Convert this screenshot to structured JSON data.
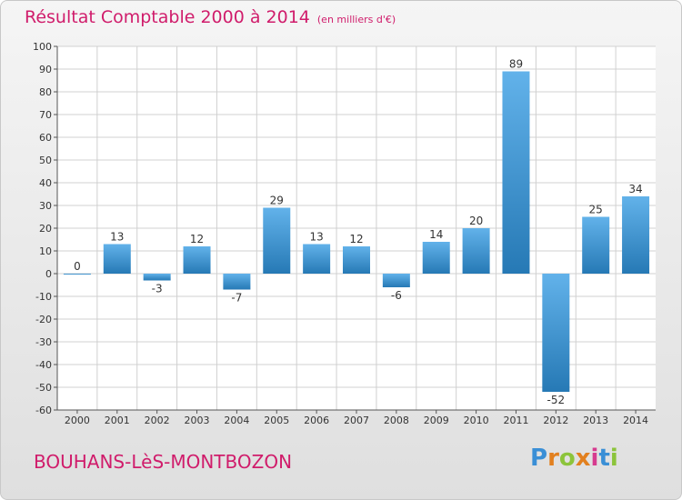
{
  "header": {
    "title": "Résultat Comptable 2000 à 2014",
    "unit": "(en milliers d'€)"
  },
  "footer": {
    "town": "BOUHANS-LèS-MONTBOZON",
    "brand": "Proxiti"
  },
  "colors": {
    "title": "#d01c6b",
    "bar_top": "#62b2ea",
    "bar_bottom": "#2679b5",
    "grid": "#d0d0d0",
    "axis_text": "#333333",
    "brand_letters": [
      "#3a8fd6",
      "#e2801f",
      "#8cc43b",
      "#e2801f",
      "#d63b8f",
      "#3a8fd6",
      "#8cc43b"
    ]
  },
  "chart_data": {
    "type": "bar",
    "categories": [
      "2000",
      "2001",
      "2002",
      "2003",
      "2004",
      "2005",
      "2006",
      "2007",
      "2008",
      "2009",
      "2010",
      "2011",
      "2012",
      "2013",
      "2014"
    ],
    "values": [
      0,
      13,
      -3,
      12,
      -7,
      29,
      13,
      12,
      -6,
      14,
      20,
      89,
      -52,
      25,
      34
    ],
    "title": "Résultat Comptable 2000 à 2014",
    "subtitle": "(en milliers d'€)",
    "xlabel": "",
    "ylabel": "",
    "ylim": [
      -60,
      100
    ],
    "yticks": [
      100,
      90,
      80,
      70,
      60,
      50,
      40,
      30,
      20,
      10,
      0,
      -10,
      -20,
      -30,
      -40,
      -50,
      -60
    ],
    "grid": true,
    "legend": "none"
  }
}
